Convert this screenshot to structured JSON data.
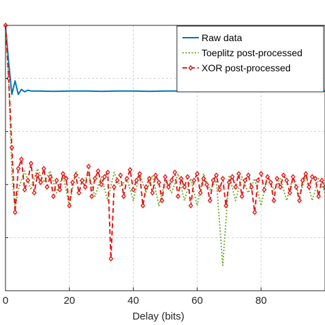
{
  "chart_data": {
    "type": "line",
    "title": "",
    "xlabel": "Delay (bits)",
    "ylabel": "",
    "xlim": [
      0,
      100
    ],
    "yscale": "log",
    "ylim": [
      1e-05,
      1
    ],
    "xticks": [
      0,
      20,
      40,
      60,
      80
    ],
    "grid": true,
    "legend_position": "top-right",
    "series": [
      {
        "name": "Raw data",
        "color": "#0072bd",
        "style": "solid",
        "x": [
          0,
          1,
          2,
          3,
          4,
          5,
          6,
          7,
          8,
          10,
          15,
          20,
          25,
          30,
          35,
          40,
          45,
          50,
          55,
          60,
          65,
          70,
          75,
          80,
          85,
          90,
          95,
          100
        ],
        "y": [
          1,
          0.2,
          0.05,
          0.09,
          0.05,
          0.062,
          0.056,
          0.06,
          0.058,
          0.058,
          0.057,
          0.058,
          0.058,
          0.057,
          0.058,
          0.058,
          0.057,
          0.058,
          0.058,
          0.057,
          0.058,
          0.058,
          0.057,
          0.058,
          0.058,
          0.057,
          0.058,
          0.058
        ]
      },
      {
        "name": "Toeplitz post-processed",
        "color": "#77ac30",
        "style": "dotted",
        "x": [
          0,
          1,
          2,
          3,
          4,
          6,
          8,
          10,
          12,
          14,
          16,
          18,
          20,
          22,
          24,
          26,
          28,
          30,
          32,
          34,
          36,
          38,
          40,
          42,
          44,
          46,
          48,
          50,
          52,
          54,
          56,
          58,
          60,
          62,
          64,
          66,
          68,
          70,
          72,
          74,
          76,
          78,
          80,
          82,
          84,
          86,
          88,
          90,
          92,
          94,
          96,
          98,
          100
        ],
        "y": [
          1,
          0.1,
          0.0016,
          0.00035,
          0.0008,
          0.0018,
          0.0008,
          0.002,
          0.0011,
          0.0018,
          0.0007,
          0.0015,
          0.0004,
          0.0018,
          0.001,
          0.0016,
          0.0006,
          0.0014,
          0.0005,
          0.0017,
          0.0009,
          0.0013,
          0.0005,
          0.0016,
          0.0007,
          0.0015,
          0.0004,
          0.0012,
          0.0007,
          0.0016,
          0.0005,
          0.0013,
          0.0004,
          0.0016,
          0.0008,
          0.0012,
          3e-05,
          0.0015,
          0.0005,
          0.0014,
          0.0007,
          0.0013,
          0.0004,
          0.0015,
          0.0008,
          0.0013,
          0.0005,
          0.0014,
          0.0006,
          0.0015,
          0.0005,
          0.0013,
          0.0007
        ]
      },
      {
        "name": "XOR post-processed",
        "color": "#e01a1a",
        "style": "dashed",
        "x": [
          0,
          1,
          2,
          3,
          4,
          5,
          6,
          7,
          8,
          9,
          10,
          11,
          12,
          13,
          14,
          15,
          16,
          17,
          18,
          19,
          20,
          21,
          22,
          23,
          24,
          25,
          26,
          27,
          28,
          29,
          30,
          31,
          32,
          33,
          34,
          35,
          36,
          37,
          38,
          39,
          40,
          41,
          42,
          43,
          44,
          45,
          46,
          47,
          48,
          49,
          50,
          51,
          52,
          53,
          54,
          55,
          56,
          57,
          58,
          59,
          60,
          61,
          62,
          63,
          64,
          65,
          66,
          67,
          68,
          69,
          70,
          71,
          72,
          73,
          74,
          75,
          76,
          77,
          78,
          79,
          80,
          81,
          82,
          83,
          84,
          85,
          86,
          87,
          88,
          89,
          90,
          91,
          92,
          93,
          94,
          95,
          96,
          97,
          98,
          99,
          100
        ],
        "y": [
          1,
          0.1,
          0.005,
          0.0003,
          0.002,
          0.003,
          0.0008,
          0.0012,
          0.0025,
          0.0007,
          0.0015,
          0.0011,
          0.002,
          0.0009,
          0.0014,
          0.0006,
          0.0012,
          0.0008,
          0.0016,
          0.0013,
          0.0004,
          0.0011,
          0.0015,
          0.0007,
          0.0012,
          0.0009,
          0.0022,
          0.0006,
          0.0013,
          0.0018,
          0.001,
          0.0014,
          0.0017,
          4e-05,
          0.0009,
          0.0012,
          0.0015,
          0.0006,
          0.0013,
          0.0019,
          0.0008,
          0.0012,
          0.0016,
          0.0004,
          0.0009,
          0.0013,
          0.0007,
          0.0015,
          0.0011,
          0.0005,
          0.0014,
          0.0009,
          0.0012,
          0.0017,
          0.0006,
          0.0013,
          0.0009,
          0.0014,
          0.0004,
          0.0012,
          0.0016,
          0.0007,
          0.0013,
          0.001,
          0.0005,
          0.0012,
          0.0015,
          0.0008,
          0.0013,
          0.0004,
          0.0011,
          0.0014,
          0.0009,
          0.0016,
          0.0006,
          0.0012,
          0.0015,
          0.0009,
          0.0003,
          0.0012,
          0.0016,
          0.0008,
          0.0014,
          0.0011,
          0.0005,
          0.0013,
          0.0009,
          0.0015,
          0.0012,
          0.0007,
          0.0014,
          0.0009,
          0.0005,
          0.0012,
          0.0016,
          0.0009,
          0.0014,
          0.0013,
          0.0006,
          0.0012,
          0.0009
        ]
      }
    ]
  }
}
